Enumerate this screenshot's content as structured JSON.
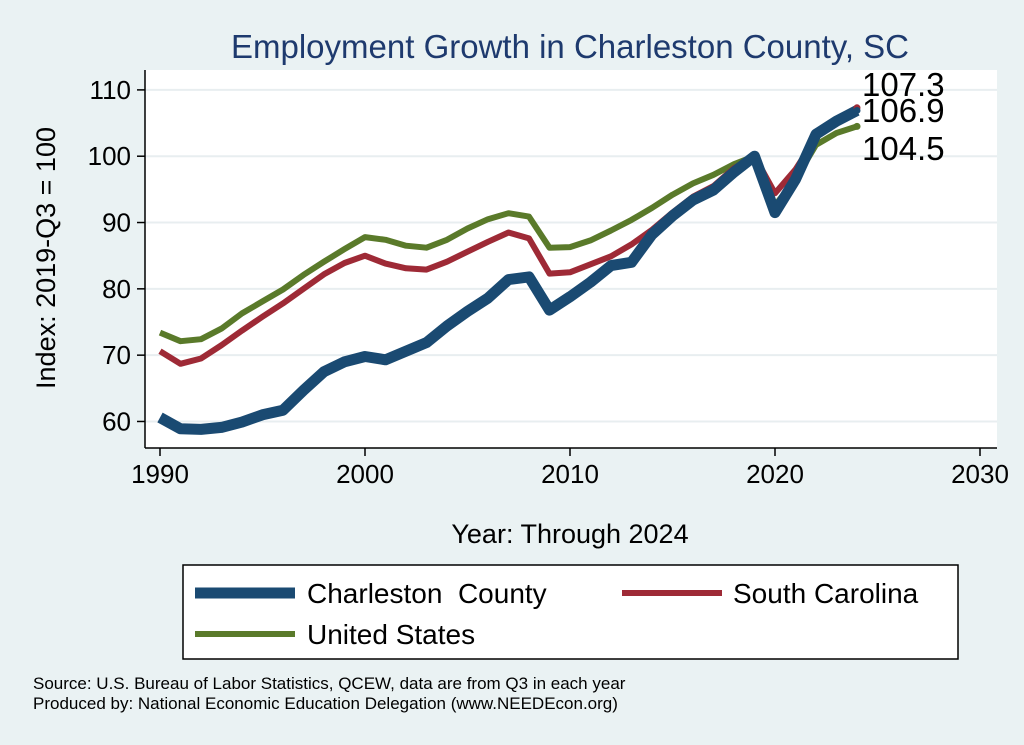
{
  "chart_data": {
    "type": "line",
    "title": "Employment Growth in Charleston County, SC",
    "xlabel": "Year: Through 2024",
    "ylabel": "Index: 2019-Q3 = 100",
    "xlim": [
      1990,
      2030
    ],
    "ylim": [
      56,
      113
    ],
    "xticks": [
      1990,
      2000,
      2010,
      2020,
      2030
    ],
    "yticks": [
      60,
      70,
      80,
      90,
      100,
      110
    ],
    "grid": true,
    "x": [
      1990,
      1991,
      1992,
      1993,
      1994,
      1995,
      1996,
      1997,
      1998,
      1999,
      2000,
      2001,
      2002,
      2003,
      2004,
      2005,
      2006,
      2007,
      2008,
      2009,
      2010,
      2011,
      2012,
      2013,
      2014,
      2015,
      2016,
      2017,
      2018,
      2019,
      2020,
      2021,
      2022,
      2023,
      2024
    ],
    "series": [
      {
        "name": "Charleston  County",
        "color": "#1a4a72",
        "values": [
          60.6,
          58.9,
          58.8,
          59.1,
          59.9,
          61.0,
          61.7,
          64.7,
          67.5,
          69.0,
          69.8,
          69.3,
          70.6,
          71.9,
          74.4,
          76.6,
          78.6,
          81.4,
          81.8,
          76.8,
          78.8,
          81.0,
          83.5,
          84.0,
          88.2,
          91.0,
          93.4,
          94.9,
          97.6,
          100.0,
          91.5,
          96.5,
          103.3,
          105.3,
          106.9
        ]
      },
      {
        "name": "South Carolina",
        "color": "#9e2a36",
        "values": [
          70.6,
          68.7,
          69.5,
          71.5,
          73.7,
          75.8,
          77.8,
          80.0,
          82.2,
          83.9,
          85.0,
          83.8,
          83.1,
          82.9,
          84.1,
          85.6,
          87.1,
          88.5,
          87.6,
          82.3,
          82.5,
          83.7,
          84.9,
          86.7,
          88.9,
          91.5,
          93.9,
          95.5,
          98.2,
          100.0,
          94.4,
          98.0,
          102.8,
          105.6,
          107.3
        ]
      },
      {
        "name": "United States",
        "color": "#5a7a2a",
        "values": [
          73.4,
          72.1,
          72.4,
          74.0,
          76.3,
          78.1,
          79.9,
          82.1,
          84.1,
          86.0,
          87.8,
          87.4,
          86.5,
          86.2,
          87.4,
          89.1,
          90.5,
          91.4,
          90.9,
          86.2,
          86.3,
          87.3,
          88.8,
          90.4,
          92.2,
          94.2,
          95.9,
          97.2,
          98.8,
          100.0,
          92.6,
          96.5,
          101.7,
          103.5,
          104.5
        ]
      }
    ],
    "end_labels": [
      "107.3",
      "106.9",
      "104.5"
    ],
    "legend": {
      "placement": "bottom",
      "columns": 2
    }
  },
  "source": {
    "line1": "Source: U.S. Bureau of Labor Statistics, QCEW, data are from Q3 in each year",
    "line2": "Produced by: National Economic Education Delegation (www.NEEDEcon.org)"
  }
}
